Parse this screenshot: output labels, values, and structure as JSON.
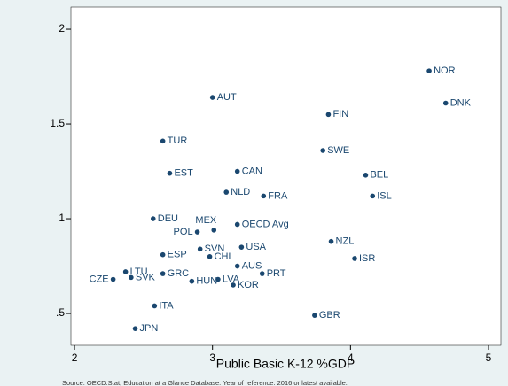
{
  "chart_data": {
    "type": "scatter",
    "x_label": "Public Basic K-12 %GDP",
    "source": "Source: OECD.Stat, Education at a Glance Database. Year of reference: 2016 or latest available.",
    "color": "#1a476f",
    "labels": [
      "NOR",
      "DNK",
      "AUT",
      "FIN",
      "TUR",
      "SWE",
      "EST",
      "CAN",
      "BEL",
      "NLD",
      "FRA",
      "ISL",
      "DEU",
      "MEX",
      "OECD Avg",
      "POL",
      "NZL",
      "SVN",
      "USA",
      "ESP",
      "CHL",
      "ISR",
      "AUS",
      "LTU",
      "GRC",
      "PRT",
      "CZE",
      "SVK",
      "HUN",
      "LVA",
      "KOR",
      "ITA",
      "GBR",
      "JPN"
    ],
    "x": [
      4.57,
      4.69,
      3.0,
      3.84,
      2.64,
      3.8,
      2.69,
      3.18,
      4.11,
      3.1,
      3.37,
      4.16,
      2.57,
      3.01,
      3.18,
      2.89,
      3.86,
      2.91,
      3.21,
      2.64,
      2.98,
      4.03,
      3.18,
      2.37,
      2.64,
      3.36,
      2.28,
      2.41,
      2.85,
      3.04,
      3.15,
      2.58,
      3.74,
      2.44
    ],
    "y": [
      1.78,
      1.61,
      1.64,
      1.55,
      1.41,
      1.36,
      1.24,
      1.25,
      1.23,
      1.14,
      1.12,
      1.12,
      1.0,
      0.94,
      0.97,
      0.93,
      0.88,
      0.84,
      0.85,
      0.81,
      0.8,
      0.79,
      0.75,
      0.72,
      0.71,
      0.71,
      0.68,
      0.69,
      0.67,
      0.68,
      0.65,
      0.54,
      0.49,
      0.42
    ],
    "xlim": [
      1.974,
      5.09
    ],
    "ylim": [
      0.332,
      2.117
    ],
    "xticks": [
      2,
      3,
      4,
      5
    ],
    "yticks": [
      {
        "value": 0.5,
        "label": ".5"
      },
      1,
      1.5,
      2
    ]
  }
}
